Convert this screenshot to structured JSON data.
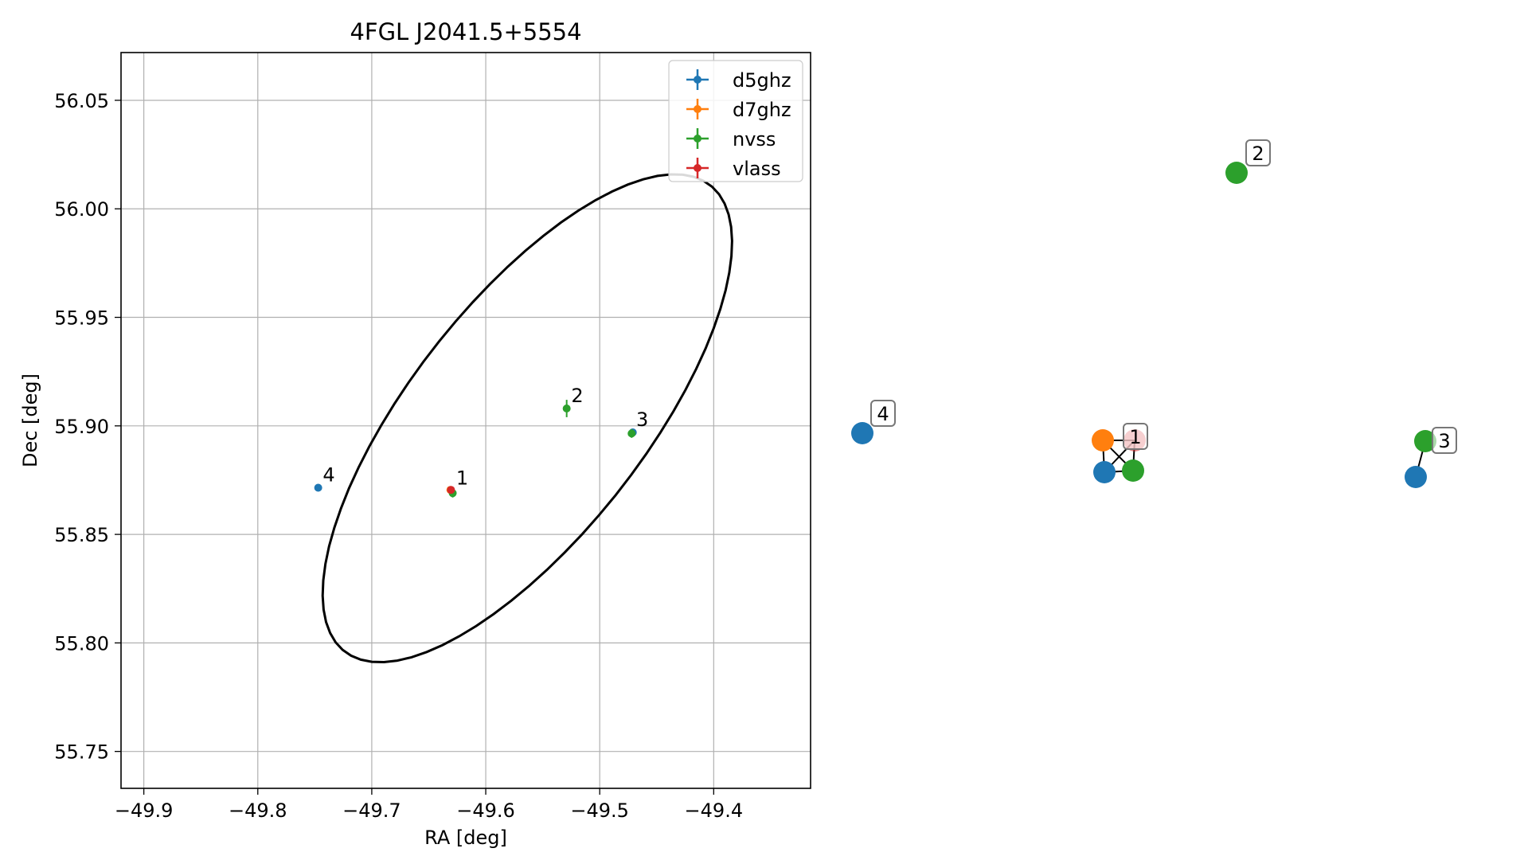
{
  "chart_data": [
    {
      "type": "scatter",
      "title": "4FGL J2041.5+5554",
      "xlabel": "RA [deg]",
      "ylabel": "Dec [deg]",
      "xlim": [
        -49.92,
        -49.315
      ],
      "ylim": [
        55.733,
        56.072
      ],
      "xticks": [
        -49.9,
        -49.8,
        -49.7,
        -49.6,
        -49.5,
        -49.4
      ],
      "xtick_labels": [
        "−49.9",
        "−49.8",
        "−49.7",
        "−49.6",
        "−49.5",
        "−49.4"
      ],
      "yticks": [
        55.75,
        55.8,
        55.85,
        55.9,
        55.95,
        56.0,
        56.05
      ],
      "ytick_labels": [
        "55.75",
        "55.80",
        "55.85",
        "55.90",
        "55.95",
        "56.00",
        "56.05"
      ],
      "grid": true,
      "legend_position": "top-right",
      "series": [
        {
          "name": "d5ghz",
          "color": "#1f77b4",
          "points": [
            {
              "x": -49.747,
              "y": 55.8715,
              "yerr": 0.001
            },
            {
              "x": -49.471,
              "y": 55.897,
              "yerr": 0.001
            }
          ]
        },
        {
          "name": "d7ghz",
          "color": "#ff7f0e",
          "points": [
            {
              "x": -49.631,
              "y": 55.8705,
              "yerr": 0.001
            }
          ]
        },
        {
          "name": "nvss",
          "color": "#2ca02c",
          "points": [
            {
              "x": -49.629,
              "y": 55.869,
              "yerr": 0.002
            },
            {
              "x": -49.529,
              "y": 55.908,
              "yerr": 0.004
            },
            {
              "x": -49.472,
              "y": 55.8965,
              "yerr": 0.002
            }
          ]
        },
        {
          "name": "vlass",
          "color": "#d62728",
          "points": [
            {
              "x": -49.6305,
              "y": 55.8705,
              "yerr": 0.001
            }
          ]
        }
      ],
      "ellipse": {
        "center_x": -49.5635,
        "center_y": 55.9035,
        "semi_major": 0.2,
        "semi_minor": 0.07,
        "angle_deg": 28
      },
      "annotations": [
        {
          "text": "1",
          "x": -49.626,
          "y": 55.873
        },
        {
          "text": "2",
          "x": -49.525,
          "y": 55.911
        },
        {
          "text": "3",
          "x": -49.468,
          "y": 55.9
        },
        {
          "text": "4",
          "x": -49.743,
          "y": 55.8745
        }
      ]
    },
    {
      "type": "network",
      "title": "",
      "nodes": [
        {
          "id": "1a",
          "color": "#1f77b4",
          "label": ""
        },
        {
          "id": "1b",
          "color": "#ff7f0e",
          "label": ""
        },
        {
          "id": "1c",
          "color": "#2ca02c",
          "label": ""
        },
        {
          "id": "1d",
          "color": "#d62728",
          "label": "1",
          "alpha": 0.55
        },
        {
          "id": "2a",
          "color": "#2ca02c",
          "label": "2"
        },
        {
          "id": "3a",
          "color": "#1f77b4",
          "label": ""
        },
        {
          "id": "3b",
          "color": "#2ca02c",
          "label": "3"
        },
        {
          "id": "4a",
          "color": "#1f77b4",
          "label": "4"
        }
      ],
      "edges": [
        [
          "1a",
          "1b"
        ],
        [
          "1a",
          "1c"
        ],
        [
          "1a",
          "1d"
        ],
        [
          "1b",
          "1c"
        ],
        [
          "1b",
          "1d"
        ],
        [
          "1c",
          "1d"
        ],
        [
          "3a",
          "3b"
        ]
      ]
    }
  ]
}
